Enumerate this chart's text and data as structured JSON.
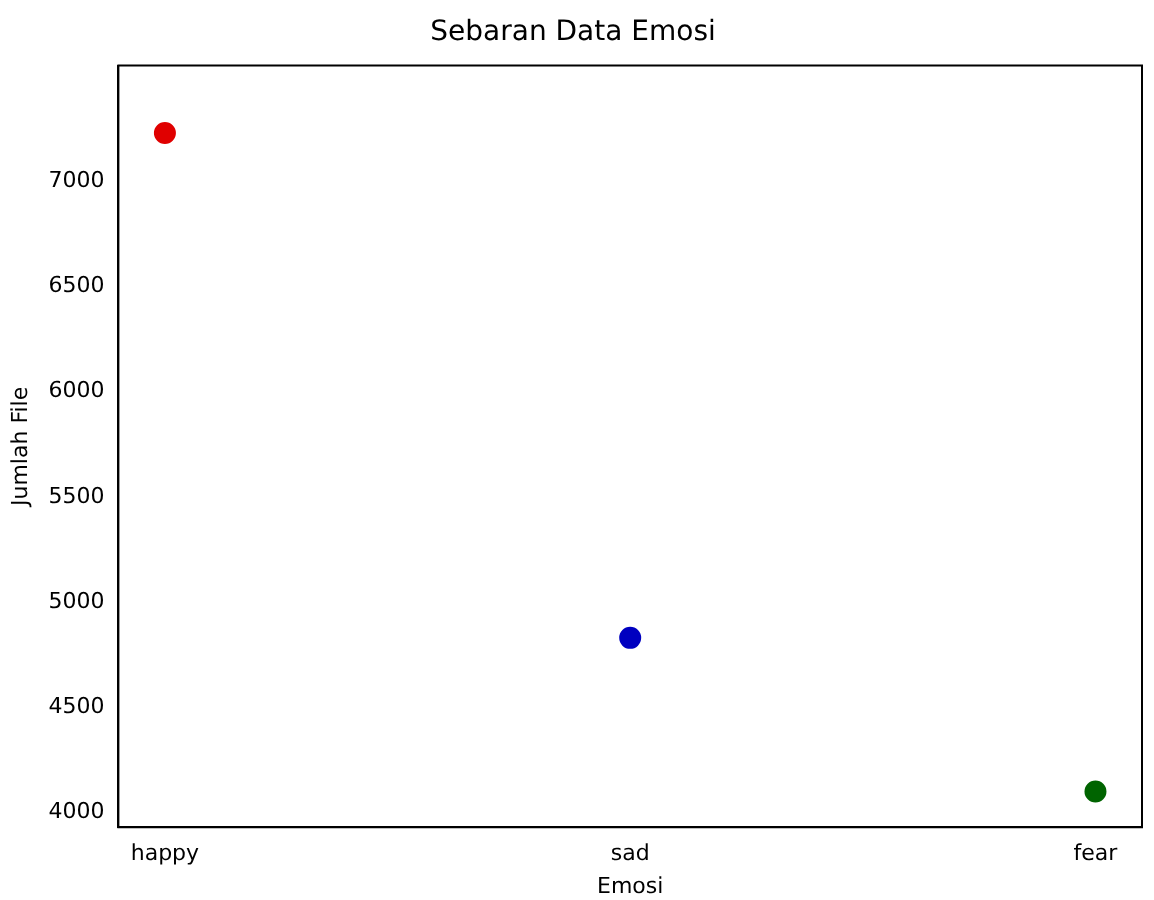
{
  "chart_data": {
    "type": "scatter",
    "title": "Sebaran Data Emosi",
    "xlabel": "Emosi",
    "ylabel": "Jumlah File",
    "categories": [
      "happy",
      "sad",
      "fear"
    ],
    "values": [
      7230,
      4830,
      4100
    ],
    "colors": [
      "#e00000",
      "#0000c0",
      "#006400"
    ],
    "ylim": [
      3930,
      7550
    ],
    "yticks": [
      4000,
      4500,
      5000,
      5500,
      6000,
      6500,
      7000
    ],
    "grid": false,
    "legend": false,
    "marker": "circle"
  }
}
